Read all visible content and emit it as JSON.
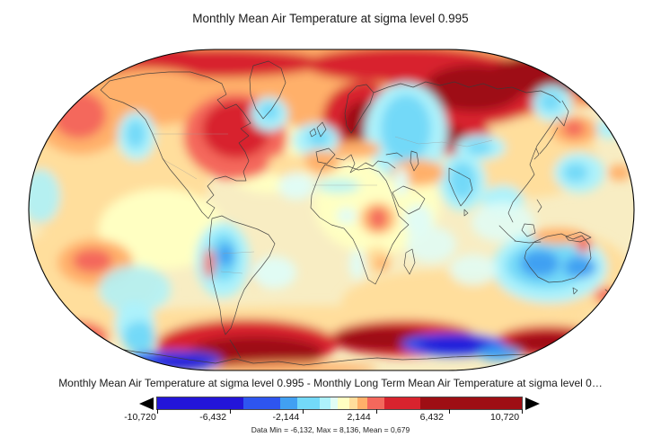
{
  "title": "Monthly Mean Air Temperature at sigma level 0.995",
  "caption": "Monthly Mean Air Temperature at sigma level 0.995 - Monthly Long Term Mean Air Temperature at sigma level 0…",
  "stats_line": "Data Min = -6,132, Max = 8,136, Mean = 0,679",
  "chart_data": {
    "type": "heatmap",
    "subtype": "filled-contour-anomaly-map",
    "projection": "robinson-like oval",
    "title": "Monthly Mean Air Temperature at sigma level 0.995",
    "expression": "Monthly Mean Air Temperature at sigma level 0.995 - Monthly Long Term Mean Air Temperature at sigma level 0…",
    "stats": {
      "min": "-6,132",
      "max": "8,136",
      "mean": "0,679"
    },
    "colorbar": {
      "tick_labels": [
        "-10,720",
        "-6,432",
        "-2,144",
        "2,144",
        "6,432",
        "10,720"
      ],
      "orientation": "horizontal",
      "underflow_arrow": true,
      "overflow_arrow": true,
      "segments": [
        {
          "color": "#2315D9",
          "width_pct": 23.6
        },
        {
          "color": "#2E55F0",
          "width_pct": 10.1
        },
        {
          "color": "#41A0F2",
          "width_pct": 4.7
        },
        {
          "color": "#73D9F8",
          "width_pct": 6.2
        },
        {
          "color": "#ADF2FB",
          "width_pct": 3.0
        },
        {
          "color": "#E1FCF4",
          "width_pct": 2.0
        },
        {
          "color": "#FFFFC2",
          "width_pct": 3.2
        },
        {
          "color": "#FFDE9C",
          "width_pct": 2.2
        },
        {
          "color": "#FFB06A",
          "width_pct": 2.7
        },
        {
          "color": "#F4685C",
          "width_pct": 4.7
        },
        {
          "color": "#D8232E",
          "width_pct": 9.8
        },
        {
          "color": "#9E0E14",
          "width_pct": 27.8
        }
      ]
    },
    "anomaly_regions": [
      {
        "region": "Arctic / northern high latitudes",
        "anomaly": "strong positive"
      },
      {
        "region": "Central and northern Siberia",
        "anomaly": "strongest positive (dark red)"
      },
      {
        "region": "Scandinavia / northern Europe",
        "anomaly": "strong positive"
      },
      {
        "region": "Eastern North America / Hudson Bay",
        "anomaly": "positive"
      },
      {
        "region": "Western United States",
        "anomaly": "weak negative"
      },
      {
        "region": "West Russia / Kazakhstan",
        "anomaly": "negative"
      },
      {
        "region": "India and Bay of Bengal",
        "anomaly": "negative"
      },
      {
        "region": "Sea of Okhotsk / NW Pacific",
        "anomaly": "weak negative"
      },
      {
        "region": "Central South America",
        "anomaly": "negative"
      },
      {
        "region": "Central / western Australia",
        "anomaly": "negative"
      },
      {
        "region": "Subantarctic ring",
        "anomaly": "strong positive band"
      },
      {
        "region": "Antarctic coast lobes",
        "anomaly": "strong negative (deep blue)"
      },
      {
        "region": "Subtropical oceans",
        "anomaly": "weak positive"
      }
    ],
    "base_color": "#F8EDC3",
    "coast_color": "#3b3b3b",
    "border_color": "#999999",
    "palette": {
      "navy": "#2315D9",
      "royal": "#2E55F0",
      "sky": "#41A0F2",
      "lcyan": "#73D9F8",
      "pcyan": "#ADF2FB",
      "wcyan": "#E1FCF4",
      "yellow": "#FFFFC2",
      "peach": "#FFDE9C",
      "orange": "#FFB06A",
      "salmon": "#F4685C",
      "red": "#D8232E",
      "dred": "#9E0E14"
    },
    "anomaly_blobs": [
      [
        "peach",
        120,
        190,
        115,
        85
      ],
      [
        "peach",
        95,
        305,
        85,
        55
      ],
      [
        "orange",
        368,
        88,
        336,
        56
      ],
      [
        "peach",
        500,
        336,
        120,
        36
      ],
      [
        "peach",
        640,
        306,
        62,
        45
      ],
      [
        "peach",
        368,
        362,
        320,
        22
      ],
      [
        "peach",
        590,
        175,
        75,
        45
      ],
      [
        "yellow",
        300,
        175,
        55,
        40
      ],
      [
        "yellow",
        420,
        228,
        70,
        55
      ],
      [
        "yellow",
        180,
        255,
        70,
        45
      ],
      [
        "dred",
        150,
        67,
        95,
        18
      ],
      [
        "red",
        240,
        70,
        120,
        16
      ],
      [
        "red",
        450,
        72,
        110,
        20
      ],
      [
        "red",
        675,
        88,
        45,
        28
      ],
      [
        "dred",
        692,
        76,
        35,
        15
      ],
      [
        "red",
        520,
        100,
        88,
        40
      ],
      [
        "dred",
        527,
        98,
        55,
        26
      ],
      [
        "dred",
        600,
        83,
        55,
        22
      ],
      [
        "red",
        403,
        133,
        44,
        42
      ],
      [
        "dred",
        406,
        139,
        25,
        27
      ],
      [
        "red",
        497,
        151,
        50,
        21
      ],
      [
        "dred",
        495,
        152,
        25,
        12
      ],
      [
        "orange",
        165,
        108,
        78,
        32
      ],
      [
        "orange",
        90,
        130,
        52,
        42
      ],
      [
        "salmon",
        88,
        128,
        30,
        26
      ],
      [
        "salmon",
        262,
        152,
        58,
        48
      ],
      [
        "red",
        263,
        144,
        38,
        32
      ],
      [
        "pcyan",
        452,
        147,
        46,
        55
      ],
      [
        "lcyan",
        452,
        143,
        28,
        38
      ],
      [
        "pcyan",
        535,
        164,
        28,
        14
      ],
      [
        "lcyan",
        533,
        164,
        15,
        8
      ],
      [
        "pcyan",
        515,
        202,
        26,
        32
      ],
      [
        "lcyan",
        515,
        201,
        15,
        21
      ],
      [
        "pcyan",
        560,
        223,
        23,
        17
      ],
      [
        "pcyan",
        615,
        115,
        22,
        20
      ],
      [
        "lcyan",
        613,
        113,
        12,
        11
      ],
      [
        "pcyan",
        300,
        127,
        21,
        19
      ],
      [
        "lcyan",
        300,
        124,
        11,
        10
      ],
      [
        "pcyan",
        152,
        151,
        21,
        27
      ],
      [
        "lcyan",
        151,
        149,
        11,
        16
      ],
      [
        "pcyan",
        352,
        156,
        26,
        19
      ],
      [
        "lcyan",
        355,
        153,
        13,
        10
      ],
      [
        "orange",
        640,
        145,
        26,
        16
      ],
      [
        "salmon",
        639,
        143,
        12,
        9
      ],
      [
        "pcyan",
        678,
        143,
        14,
        11
      ],
      [
        "pcyan",
        645,
        192,
        28,
        22
      ],
      [
        "lcyan",
        641,
        192,
        14,
        11
      ],
      [
        "orange",
        690,
        192,
        13,
        9
      ],
      [
        "pcyan",
        45,
        218,
        22,
        30,
        0.9
      ],
      [
        "orange",
        357,
        180,
        22,
        13
      ],
      [
        "orange",
        398,
        166,
        26,
        10
      ],
      [
        "orange",
        465,
        192,
        30,
        15
      ],
      [
        "pcyan",
        377,
        207,
        24,
        8,
        0.8
      ],
      [
        "wcyan",
        447,
        202,
        8,
        16
      ],
      [
        "orange",
        421,
        243,
        20,
        18,
        0.9
      ],
      [
        "salmon",
        421,
        243,
        10,
        12
      ],
      [
        "wcyan",
        386,
        240,
        11,
        9
      ],
      [
        "wcyan",
        466,
        245,
        16,
        18
      ],
      [
        "peach",
        420,
        289,
        16,
        15
      ],
      [
        "orange",
        425,
        293,
        8,
        8
      ],
      [
        "wcyan",
        398,
        294,
        9,
        17
      ],
      [
        "peach",
        290,
        303,
        14,
        17
      ],
      [
        "peach",
        320,
        184,
        22,
        13
      ],
      [
        "wcyan",
        560,
        247,
        35,
        22,
        0.9
      ],
      [
        "wcyan",
        330,
        207,
        20,
        15
      ],
      [
        "pcyan",
        248,
        289,
        30,
        42
      ],
      [
        "lcyan",
        249,
        286,
        17,
        27
      ],
      [
        "sky",
        251,
        284,
        9,
        13
      ],
      [
        "salmon",
        233,
        293,
        6,
        17
      ],
      [
        "orange",
        106,
        292,
        42,
        26
      ],
      [
        "salmon",
        103,
        290,
        22,
        13
      ],
      [
        "pcyan",
        150,
        322,
        40,
        27,
        0.85
      ],
      [
        "wcyan",
        305,
        303,
        25,
        18
      ],
      [
        "pcyan",
        612,
        297,
        64,
        40
      ],
      [
        "lcyan",
        609,
        295,
        46,
        26
      ],
      [
        "sky",
        601,
        293,
        22,
        15
      ],
      [
        "sky",
        646,
        297,
        18,
        12
      ],
      [
        "orange",
        622,
        263,
        30,
        9
      ],
      [
        "salmon",
        650,
        272,
        9,
        9
      ],
      [
        "salmon",
        677,
        329,
        15,
        9
      ],
      [
        "wcyan",
        480,
        272,
        28,
        20,
        0.9
      ],
      [
        "wcyan",
        527,
        300,
        26,
        17,
        0.9
      ],
      [
        "salmon",
        85,
        375,
        35,
        18
      ],
      [
        "red",
        80,
        378,
        20,
        10
      ],
      [
        "pcyan",
        150,
        360,
        22,
        25
      ],
      [
        "lcyan",
        155,
        375,
        18,
        18
      ],
      [
        "red",
        275,
        383,
        100,
        28
      ],
      [
        "dred",
        285,
        392,
        75,
        18
      ],
      [
        "red",
        450,
        376,
        82,
        20
      ],
      [
        "dred",
        428,
        377,
        55,
        13
      ],
      [
        "red",
        610,
        379,
        58,
        17
      ],
      [
        "dred",
        612,
        381,
        45,
        11
      ],
      [
        "royal",
        195,
        401,
        52,
        11
      ],
      [
        "navy",
        205,
        403,
        35,
        8
      ],
      [
        "royal",
        505,
        383,
        58,
        13
      ],
      [
        "navy",
        505,
        383,
        40,
        9
      ],
      [
        "sky",
        556,
        393,
        24,
        8
      ],
      [
        "orange",
        330,
        410,
        90,
        8,
        0.9
      ]
    ],
    "coastlines": [
      "M112,100 L122,90 L140,86 L162,82 L188,80 L212,80 L232,86 L247,93 L252,105 L242,111 L251,121 L263,116 L271,125 L279,137 L268,143 L277,151 L266,159 L273,169 L277,179 L271,191 L274,201 L263,201 L251,196 L239,199 L231,207 L238,217 L230,225 L239,231 L232,243 L225,236 L217,224 L209,212 L199,200 L189,188 L181,176 L175,161 L169,147 L162,133 L151,121 L137,114 L122,109 Z",
      "M282,73 L299,68 L313,76 L318,92 L311,108 L302,122 L293,132 L285,121 L279,105 L278,88 Z",
      "M236,243 L247,240 L259,246 L272,250 L287,255 L299,261 L306,271 L300,285 L291,297 L281,309 L272,322 L266,336 L262,350 L257,365 L251,372 L247,360 L245,344 L241,328 L237,312 L235,296 L233,278 L234,260 Z",
      "M362,183 L374,187 L388,185 L399,189 L411,187 L422,191 L430,201 L436,215 L444,240 L455,250 L446,258 L437,272 L430,288 L424,304 L418,316 L410,311 L405,297 L400,281 L393,266 L383,254 L369,250 L356,242 L346,231 L347,217 L353,201 L358,189 Z",
      "M452,281 L459,277 L462,292 L456,305 L450,295 Z",
      "M388,105 L397,96 L408,94 L416,103 L412,115 L404,127 L397,139 L391,148 L386,140 L384,126 Z",
      "M353,142 L359,136 L363,144 L357,152 Z",
      "M345,147 L350,143 L352,149 L347,152 Z",
      "M352,169 L366,165 L373,172 L364,182 L354,180 Z",
      "M374,176 L383,178 L391,172 L395,182 L390,192 L398,187 L407,181 L415,185 L421,179 L432,181 L440,187",
      "M430,172 L442,170 L448,174",
      "M458,168 L464,170 L466,182 L461,190 L457,180 Z",
      "M416,103 L432,97 L446,93 L460,97 L474,91 L490,95 L506,91 L522,97 L538,93 L554,99 L570,97 L586,103 L602,101 L616,107 L624,114",
      "M626,112 L633,124 L628,140 L620,130",
      "M620,130 L612,142 L605,152 L598,162 L594,172 L590,183 L595,194 L587,205 L579,215 L571,225 L566,237 L571,247",
      "M621,142 L615,153 L608,163 L601,171",
      "M597,165 L600,172 L595,177",
      "M500,187 L512,193 L523,199 L526,211 L518,223 L513,229 L506,215 L500,201 Z",
      "M517,233 L521,237 L517,240 Z",
      "M437,214 L449,207 L462,212 L473,221 L467,232 L455,238 L444,229 Z",
      "M556,251 L566,261 L574,268",
      "M584,249 L594,250 L596,259 L587,263 L581,256 Z",
      "M573,268 L589,270 L602,269",
      "M630,263 L646,258 L658,264 L646,269 L633,267 Z",
      "M598,222 L603,230 L599,236",
      "M586,279 L595,269 L609,263 L625,260 L638,266 L648,262 L656,272 L658,287 L651,299 L640,309 L626,313 L611,314 L599,308 L590,297 L584,287 Z",
      "M638,320 L643,323 L639,327 Z",
      "M674,322 L681,328 L676,335",
      "M683,334 L691,342 L685,348",
      "M92,380 L120,386 L150,391 L180,395 L210,400 L240,404 L262,399 L282,404 L310,402 L338,406 L366,403 L394,400 L420,398 L448,400 L476,399 L504,397 L532,396 L560,395 L588,394 L616,390 L644,386",
      "M256,378 L263,389 L268,398"
    ],
    "borders": [
      "M170,149 L254,149",
      "M181,177 L204,190 L219,199",
      "M348,206 L420,206",
      "M440,152 L466,160 L492,158 L520,163 L548,156",
      "M248,282 L283,280",
      "M246,302 L270,304"
    ]
  }
}
